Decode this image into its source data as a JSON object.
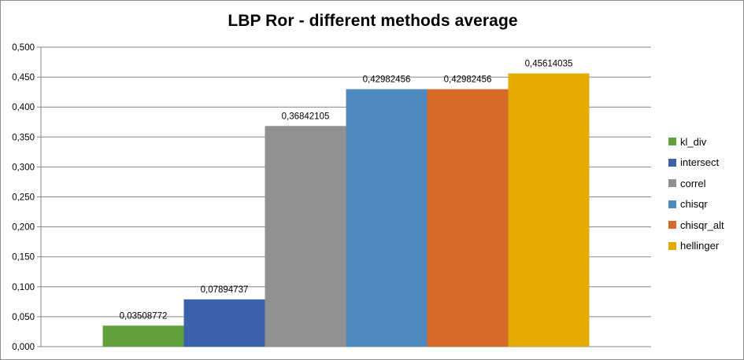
{
  "chart_data": {
    "type": "bar",
    "title": "LBP Ror - different methods average",
    "xlabel": "",
    "ylabel": "",
    "ylim": [
      0,
      0.5
    ],
    "ytick_step": 0.05,
    "ytick_decimals": 3,
    "grid": true,
    "legend_position": "right",
    "series": [
      {
        "name": "kl_div",
        "value": 0.03508772,
        "label": "0,03508772",
        "color": "#62a03b"
      },
      {
        "name": "intersect",
        "value": 0.07894737,
        "label": "0,07894737",
        "color": "#3a62aa"
      },
      {
        "name": "correl",
        "value": 0.36842105,
        "label": "0,36842105",
        "color": "#919191"
      },
      {
        "name": "chisqr",
        "value": 0.42982456,
        "label": "0,42982456",
        "color": "#4f89c0"
      },
      {
        "name": "chisqr_alt",
        "value": 0.42982456,
        "label": "0,42982456",
        "color": "#d66b29"
      },
      {
        "name": "hellinger",
        "value": 0.45614035,
        "label": "0,45614035",
        "color": "#e3aa00"
      }
    ]
  }
}
